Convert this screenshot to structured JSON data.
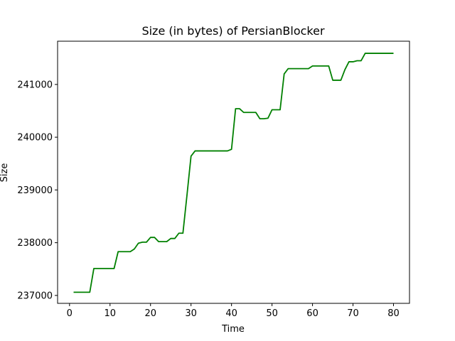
{
  "chart_data": {
    "type": "line",
    "title": "Size (in bytes) of PersianBlocker",
    "xlabel": "Time",
    "ylabel": "Size",
    "xlim": [
      -2.95,
      83.95
    ],
    "ylim": [
      236850,
      241820
    ],
    "xticks": [
      0,
      10,
      20,
      30,
      40,
      50,
      60,
      70,
      80
    ],
    "yticks": [
      237000,
      238000,
      239000,
      240000,
      241000
    ],
    "grid": false,
    "series": [
      {
        "color": "#008000",
        "x": [
          1,
          2,
          3,
          4,
          5,
          6,
          7,
          8,
          9,
          10,
          11,
          12,
          13,
          14,
          15,
          16,
          17,
          18,
          19,
          20,
          21,
          22,
          23,
          24,
          25,
          26,
          27,
          28,
          29,
          30,
          31,
          32,
          33,
          34,
          35,
          36,
          37,
          38,
          39,
          40,
          41,
          42,
          43,
          44,
          45,
          46,
          47,
          48,
          49,
          50,
          51,
          52,
          53,
          54,
          55,
          56,
          57,
          58,
          59,
          60,
          61,
          62,
          63,
          64,
          65,
          66,
          67,
          68,
          69,
          70,
          71,
          72,
          73,
          74,
          75,
          76,
          77,
          78,
          79,
          80
        ],
        "y": [
          237060,
          237060,
          237060,
          237060,
          237060,
          237510,
          237510,
          237510,
          237510,
          237510,
          237510,
          237830,
          237830,
          237830,
          237830,
          237880,
          237990,
          238010,
          238010,
          238100,
          238100,
          238020,
          238020,
          238020,
          238080,
          238080,
          238180,
          238180,
          238900,
          239640,
          239740,
          239740,
          239740,
          239740,
          239740,
          239740,
          239740,
          239740,
          239740,
          239770,
          240540,
          240540,
          240470,
          240470,
          240470,
          240470,
          240350,
          240350,
          240360,
          240520,
          240520,
          240520,
          241200,
          241300,
          241300,
          241300,
          241300,
          241300,
          241300,
          241350,
          241350,
          241350,
          241350,
          241350,
          241080,
          241080,
          241080,
          241280,
          241430,
          241430,
          241450,
          241450,
          241590,
          241590,
          241590,
          241590,
          241590,
          241590,
          241590,
          241590
        ]
      }
    ]
  }
}
